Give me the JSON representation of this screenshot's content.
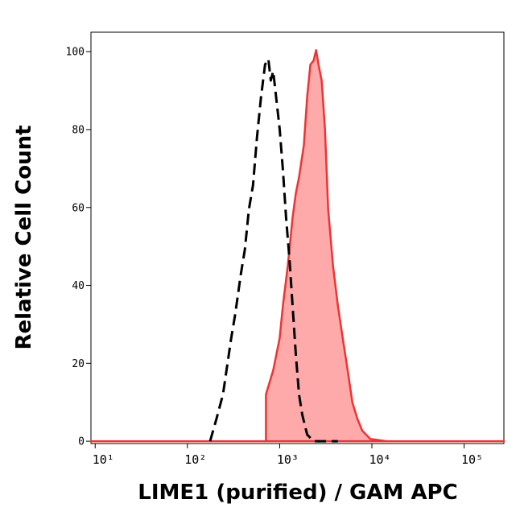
{
  "chart_data": {
    "type": "histogram-overlay",
    "xlabel": "LIME1 (purified) / GAM APC",
    "ylabel": "Relative Cell Count",
    "xscale": "log",
    "xlim": [
      9,
      270000
    ],
    "ylim": [
      -0.6,
      105
    ],
    "xticks": [
      {
        "value": 10,
        "label": "10¹"
      },
      {
        "value": 100,
        "label": "10²"
      },
      {
        "value": 1000,
        "label": "10³"
      },
      {
        "value": 10000,
        "label": "10⁴"
      },
      {
        "value": 100000,
        "label": "10⁵"
      }
    ],
    "yticks": [
      0,
      20,
      40,
      60,
      80,
      100
    ],
    "series": [
      {
        "color": "#ee3333",
        "fill": "#ffaaaa",
        "style": "solid",
        "x": [
          9,
          710,
          710,
          851,
          1000,
          1084,
          1224,
          1381,
          1497,
          1624,
          1832,
          1987,
          2153,
          2333,
          2483,
          2637,
          2857,
          3097,
          3357,
          3793,
          4285,
          4831,
          5457,
          6151,
          6950,
          7852,
          9597,
          14380,
          21530,
          270000
        ],
        "values": [
          0,
          0,
          12,
          18.2,
          26.4,
          34.7,
          45,
          57.4,
          63.6,
          67.8,
          76,
          88.4,
          96.7,
          97.7,
          100.4,
          96.7,
          92.6,
          80.2,
          59.5,
          45,
          34.7,
          26.4,
          18.2,
          9.9,
          5.8,
          2.7,
          0.6,
          0,
          0,
          0
        ]
      },
      {
        "color": "#000000",
        "style": "dashed",
        "x": [
          176,
          207,
          243,
          269,
          298,
          330,
          380,
          420,
          464,
          514,
          568,
          629,
          695,
          754,
          801,
          851,
          904,
          1000,
          1084,
          1175,
          1274,
          1381,
          1497,
          1624,
          1760,
          1987,
          2333,
          4285
        ],
        "values": [
          0,
          5.8,
          12,
          19.2,
          26.4,
          32.6,
          43,
          49.2,
          59.5,
          65.7,
          78.1,
          88.4,
          96.7,
          98.1,
          92.6,
          95,
          89.5,
          80.2,
          69.8,
          57.4,
          47.1,
          34.7,
          22.3,
          12,
          6.8,
          1.7,
          0,
          0
        ]
      }
    ]
  }
}
